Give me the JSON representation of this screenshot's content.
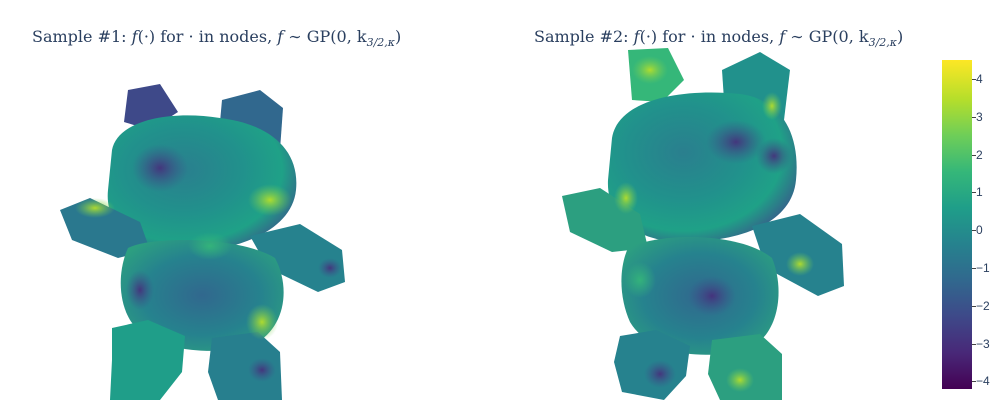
{
  "chart_data": [
    {
      "type": "heatmap",
      "title": "Sample #1: f(·) for · in nodes, f ∼ GP(0, k3/2,κ)",
      "surface": "teddy bear mesh",
      "colorscale": [
        "#440154",
        "#482878",
        "#3e4989",
        "#31688e",
        "#26828e",
        "#1f9e89",
        "#35b779",
        "#6ece58",
        "#b5de2b",
        "#fde725"
      ]
    },
    {
      "type": "heatmap",
      "title": "Sample #2: f(·) for · in nodes, f ∼ GP(0, k3/2,κ)",
      "surface": "teddy bear mesh",
      "colorscale": [
        "#440154",
        "#482878",
        "#3e4989",
        "#31688e",
        "#26828e",
        "#1f9e89",
        "#35b779",
        "#6ece58",
        "#b5de2b",
        "#fde725"
      ]
    }
  ],
  "colorbar": {
    "range": [
      -4.2,
      4.5
    ],
    "ticks": [
      "4",
      "3",
      "2",
      "1",
      "0",
      "−1",
      "−2",
      "−3",
      "−4"
    ],
    "tick_values": [
      4,
      3,
      2,
      1,
      0,
      -1,
      -2,
      -3,
      -4
    ]
  },
  "titles": {
    "sample1_prefix": "Sample #1: ",
    "sample2_prefix": "Sample #2: ",
    "body": " for  ·  in nodes, ",
    "dist": " ∼ GP(0, k",
    "sub": "3/2,κ",
    "close": ")"
  }
}
